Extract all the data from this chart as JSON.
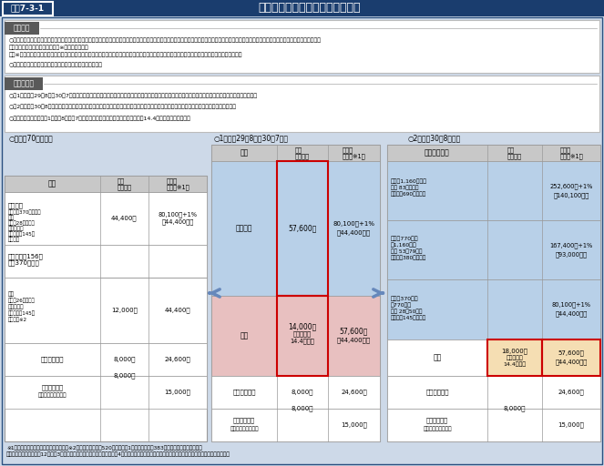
{
  "title_label": "図表7-3-1",
  "title_main": "高額療養費制度の見直しについて",
  "seido_title": "制度概要",
  "seido_lines": [
    "○高額療養費制度は、家計に対する医療費の自己負担が過重なものとならないよう、医療機関の窓口において医療費の自己負担を支払っていただいた後、月ごとの自己負担限度額を超える部分について、",
    "　事後的に保険者から償還払い（※）される制度。",
    "　（※）入院の場合や同一医療機関での外来の場合、医療機関の窓口での支払を自己負担限度額までにとどめる現物給付化の仕組みが導入されている。",
    "○自己負担限度額は、被保険者の所得に応じて設定される。"
  ],
  "minaoshi_title": "見直し内容",
  "minaoshi_lines": [
    "○第1段階目（29年8月～30年7月）では、現行の枠組みを維持したまま、限度額を引き上げ。一般区分の限度額（世帯）については、多数回該当を設定。",
    "○第2段階目（30年8月～）では、現役並み所得区分については細分化した上で限度額を引き上げ。一般区分については外来上限額を引き上げ。",
    "○一般区分については、1年間（8月～翌7月）の外来の自己負担額の合計額に、年間14.4万円の上限を設ける。"
  ],
  "table1_label": "○現行（70歳以上）",
  "table2_label": "○1段目（29年8月～30年7月）",
  "table3_label": "○2段目（30年8月～）",
  "footnote1": "※1　同じ世帯で同じ保険者に属する者　※2　収入の合計額が520万円未満（1人世帯の場合は383万円未満）の場合を含む。",
  "footnote2": "（　）内の金額は、過去12ヶ月に3回以上高額療養費の支給を受けた場合の4回目以降の限度額（多数回該当）。年収は東京都特別区在住の単身者の例。",
  "colors": {
    "title_bg": "#1a3d6e",
    "title_text": "#ffffff",
    "label_box_bg": "#1a3d6e",
    "main_bg": "#cdd9e8",
    "section_header_bg": "#595959",
    "section_header_text": "#ffffff",
    "section_bg": "#ffffff",
    "table_header_bg": "#c8c8c8",
    "cell_blue": "#b8d0e8",
    "cell_pink": "#e8c0c0",
    "cell_orange": "#f5deb3",
    "cell_white": "#ffffff",
    "red_border": "#cc0000",
    "border": "#999999",
    "border_dark": "#666666",
    "arrow_color": "#6688bb",
    "black": "#000000",
    "white": "#ffffff"
  }
}
